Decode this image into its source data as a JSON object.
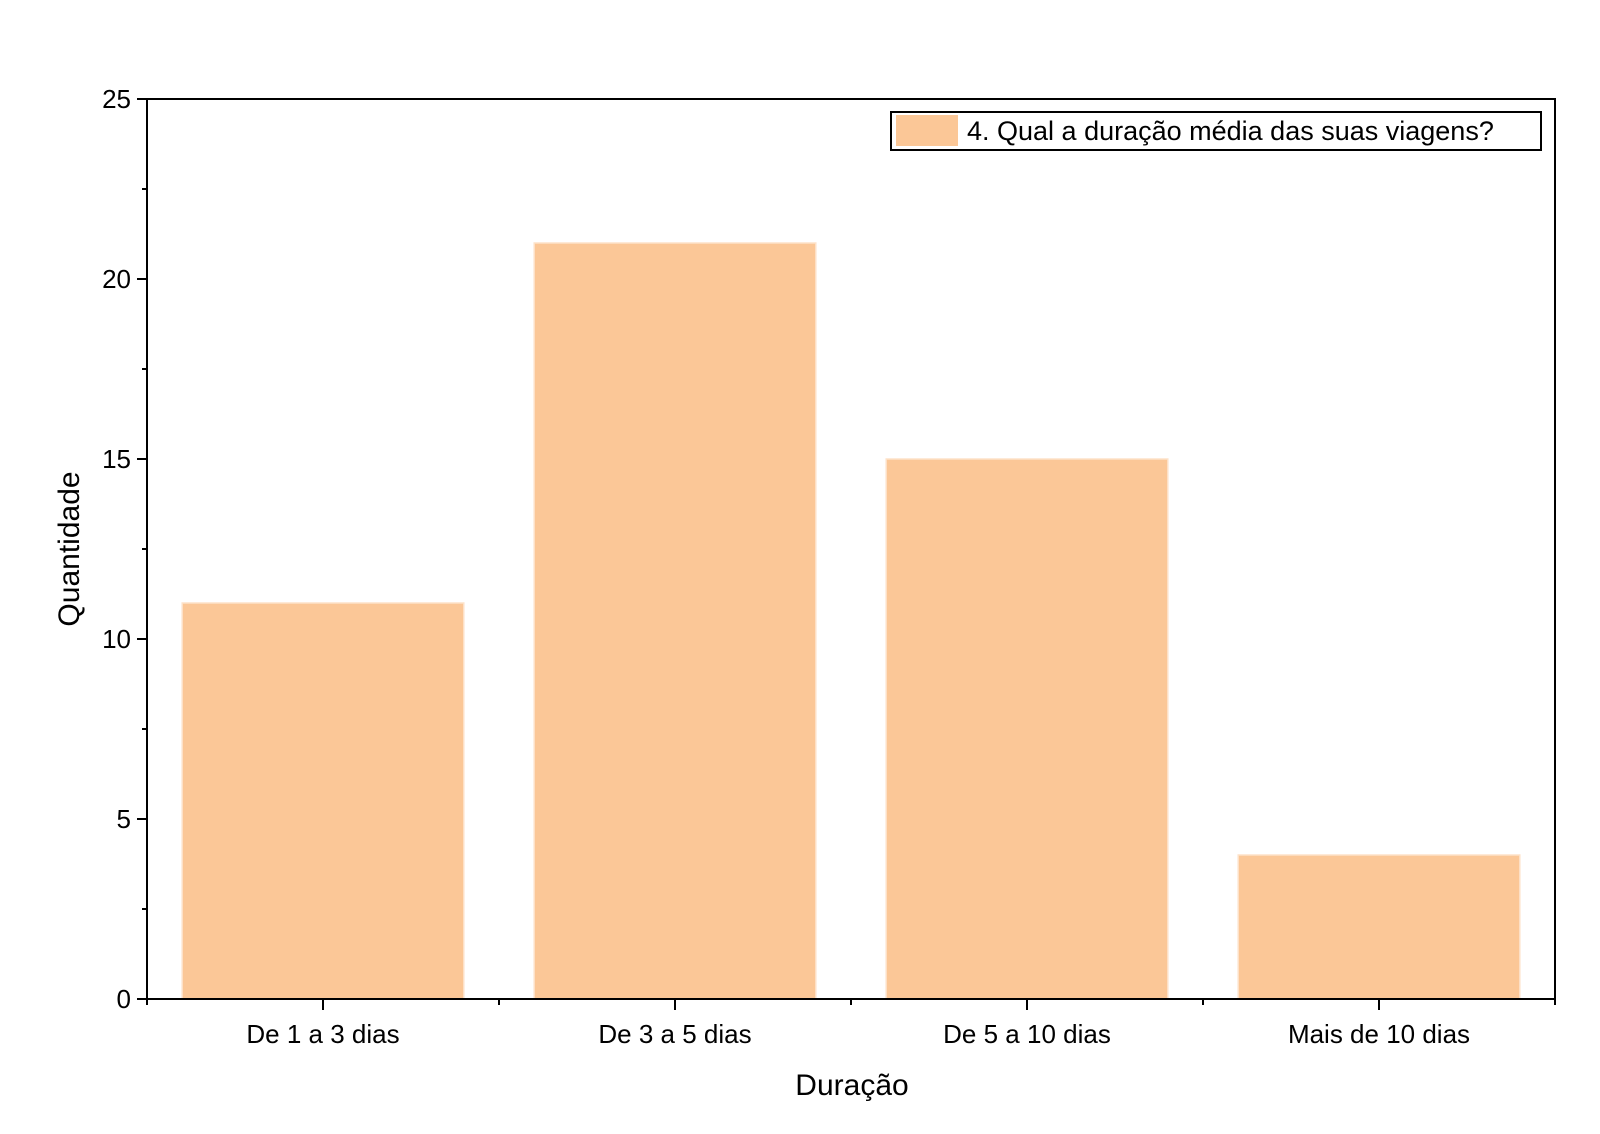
{
  "chart_data": {
    "type": "bar",
    "categories": [
      "De 1 a 3 dias",
      "De 3 a 5 dias",
      "De 5 a 10 dias",
      "Mais de 10 dias"
    ],
    "series": [
      {
        "name": "4. Qual a duração média das suas viagens?",
        "values": [
          11,
          21,
          15,
          4
        ],
        "color": "#FBC797"
      }
    ],
    "xlabel": "Duração",
    "ylabel": "Quantidade",
    "ylim": [
      0,
      25
    ],
    "yticks": [
      0,
      5,
      10,
      15,
      20,
      25
    ],
    "grid": false,
    "legend_position": "top-right"
  }
}
